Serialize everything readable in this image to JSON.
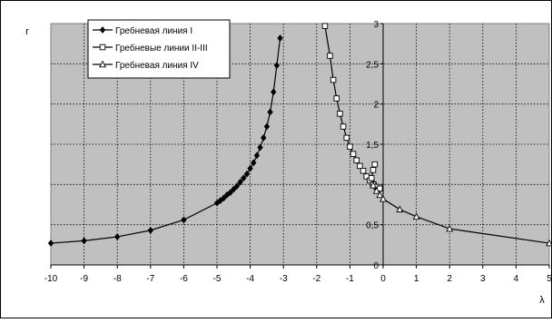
{
  "chart_data": {
    "type": "line",
    "xlabel": "λ",
    "ylabel": "r",
    "xlim": [
      -10,
      5
    ],
    "ylim": [
      0,
      3
    ],
    "x_ticks": [
      "-10",
      "-9",
      "-8",
      "-7",
      "-6",
      "-5",
      "-4",
      "-3",
      "-2",
      "-1",
      "0",
      "1",
      "2",
      "3",
      "4",
      "5"
    ],
    "y_ticks": [
      "0",
      "0,5",
      "1",
      "1,5",
      "2",
      "2,5",
      "3"
    ],
    "grid": true,
    "legend_position": "top-left",
    "colors": {
      "plot_background": "#c0c0c0",
      "series_line": "#000000",
      "grid_line": "#000000"
    },
    "series": [
      {
        "name": "Гребневая линия I",
        "marker": "diamond",
        "points": [
          [
            -10,
            0.27
          ],
          [
            -9,
            0.3
          ],
          [
            -8,
            0.35
          ],
          [
            -7,
            0.43
          ],
          [
            -6,
            0.56
          ],
          [
            -5,
            0.77
          ],
          [
            -4.9,
            0.8
          ],
          [
            -4.8,
            0.83
          ],
          [
            -4.7,
            0.87
          ],
          [
            -4.6,
            0.9
          ],
          [
            -4.5,
            0.94
          ],
          [
            -4.4,
            0.98
          ],
          [
            -4.3,
            1.03
          ],
          [
            -4.2,
            1.08
          ],
          [
            -4.1,
            1.13
          ],
          [
            -4.0,
            1.2
          ],
          [
            -3.9,
            1.27
          ],
          [
            -3.8,
            1.36
          ],
          [
            -3.7,
            1.46
          ],
          [
            -3.6,
            1.58
          ],
          [
            -3.5,
            1.72
          ],
          [
            -3.4,
            1.9
          ],
          [
            -3.3,
            2.15
          ],
          [
            -3.2,
            2.48
          ],
          [
            -3.1,
            2.82
          ]
        ]
      },
      {
        "name": "Гребневые линии II-III",
        "marker": "square",
        "points": [
          [
            -1.75,
            2.97
          ],
          [
            -1.6,
            2.6
          ],
          [
            -1.5,
            2.3
          ],
          [
            -1.4,
            2.07
          ],
          [
            -1.3,
            1.88
          ],
          [
            -1.2,
            1.72
          ],
          [
            -1.1,
            1.58
          ],
          [
            -1.0,
            1.47
          ],
          [
            -0.9,
            1.38
          ],
          [
            -0.8,
            1.3
          ],
          [
            -0.7,
            1.23
          ],
          [
            -0.6,
            1.17
          ],
          [
            -0.5,
            1.1
          ],
          [
            -0.4,
            1.05
          ],
          [
            -0.3,
            1.0
          ],
          [
            -0.2,
            0.97
          ],
          [
            -0.1,
            0.95
          ],
          [
            -0.35,
            1.08
          ],
          [
            -0.3,
            1.18
          ],
          [
            -0.25,
            1.25
          ]
        ]
      },
      {
        "name": "Гребневая линия IV",
        "marker": "triangle",
        "points": [
          [
            -0.3,
            0.99
          ],
          [
            -0.2,
            0.92
          ],
          [
            -0.1,
            0.87
          ],
          [
            0,
            0.82
          ],
          [
            0.5,
            0.69
          ],
          [
            1,
            0.6
          ],
          [
            2,
            0.45
          ],
          [
            5,
            0.27
          ]
        ]
      }
    ]
  }
}
